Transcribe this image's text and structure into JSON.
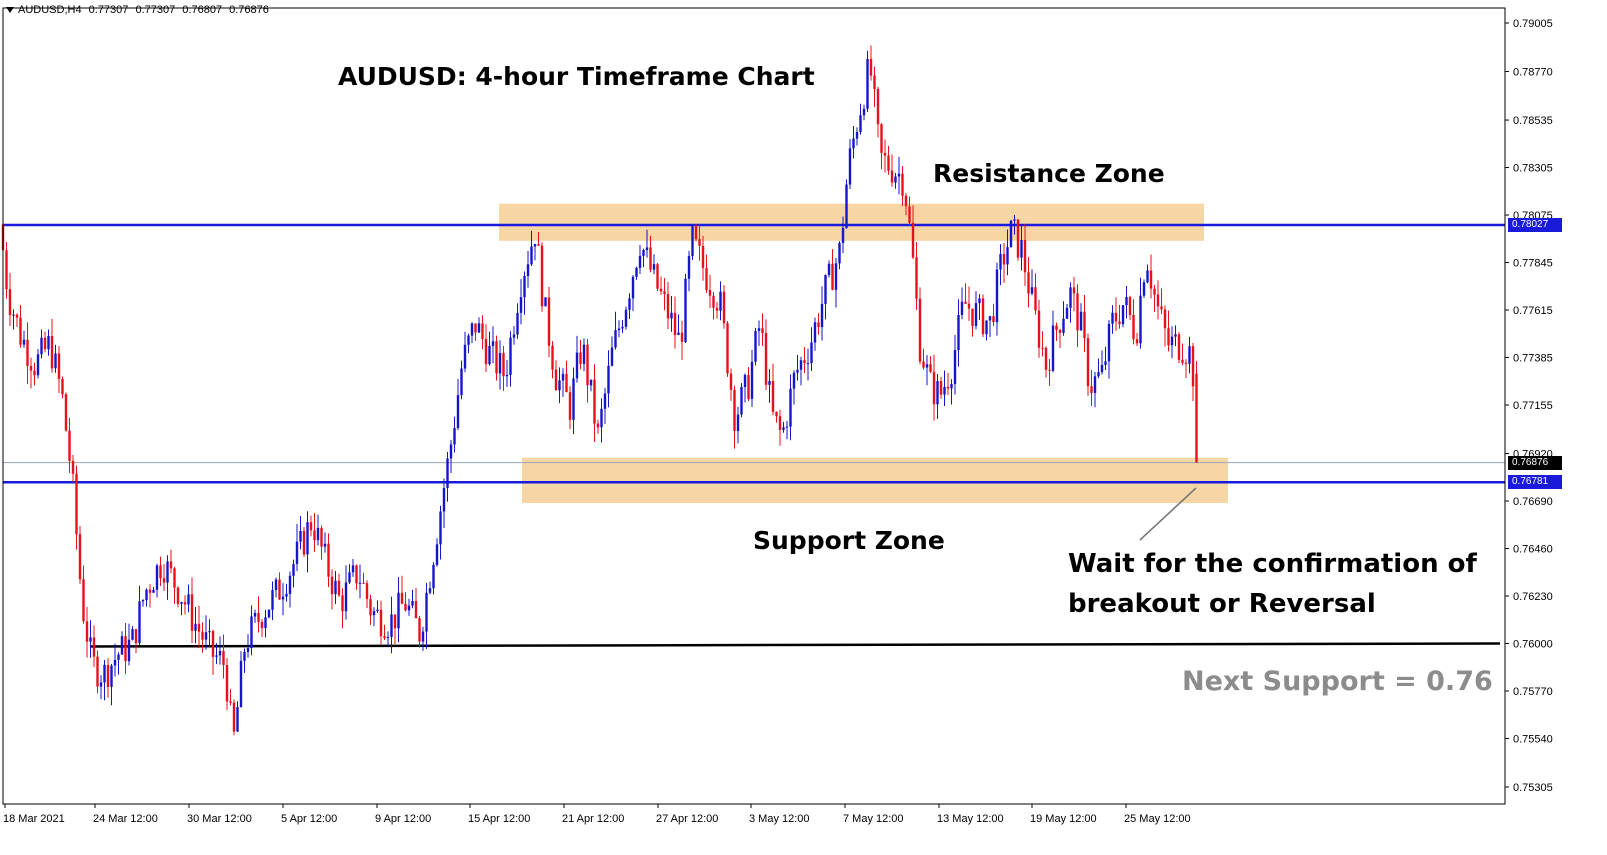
{
  "header": {
    "symbol": "AUDUSD,H4",
    "open": "0.77307",
    "high": "0.77307",
    "low": "0.76807",
    "close": "0.76876"
  },
  "annotations": {
    "title": "AUDUSD: 4-hour Timeframe Chart",
    "resistance_zone": "Resistance Zone",
    "support_zone": "Support Zone",
    "wait_line1": "Wait for the confirmation of",
    "wait_line2": "breakout or Reversal",
    "next_support": "Next Support = 0.76"
  },
  "price_labels": {
    "resistance": "0.78027",
    "current": "0.76876",
    "support": "0.76781"
  },
  "colors": {
    "bull": "#1515cc",
    "bear": "#e8101a",
    "level_line": "#1a1adb",
    "zone_fill": "#f7d6a6",
    "next_support_line": "#000000"
  },
  "chart_data": {
    "type": "candlestick",
    "y_axis_ticks": [
      "0.79005",
      "0.78770",
      "0.78535",
      "0.78305",
      "0.78075",
      "0.77845",
      "0.77615",
      "0.77385",
      "0.77155",
      "0.76920",
      "0.76690",
      "0.76460",
      "0.76230",
      "0.76000",
      "0.75770",
      "0.75540",
      "0.75305"
    ],
    "x_axis_ticks": [
      "18 Mar 2021",
      "24 Mar 12:00",
      "30 Mar 12:00",
      "5 Apr 12:00",
      "9 Apr 12:00",
      "15 Apr 12:00",
      "21 Apr 12:00",
      "27 Apr 12:00",
      "3 May 12:00",
      "7 May 12:00",
      "13 May 12:00",
      "19 May 12:00",
      "25 May 12:00"
    ],
    "ylim": [
      0.7525,
      0.791
    ],
    "horizontal_levels": {
      "resistance": 0.78027,
      "current": 0.76876,
      "support": 0.76781,
      "next_support": 0.76
    },
    "zones": {
      "resistance_zone": [
        0.7795,
        0.7813
      ],
      "support_zone": [
        0.7668,
        0.769
      ]
    },
    "close_path": [
      [
        0,
        0.7803
      ],
      [
        8,
        0.777
      ],
      [
        20,
        0.775
      ],
      [
        35,
        0.7735
      ],
      [
        50,
        0.7745
      ],
      [
        62,
        0.772
      ],
      [
        72,
        0.768
      ],
      [
        82,
        0.762
      ],
      [
        92,
        0.759
      ],
      [
        104,
        0.7585
      ],
      [
        118,
        0.7595
      ],
      [
        132,
        0.76
      ],
      [
        145,
        0.7625
      ],
      [
        162,
        0.764
      ],
      [
        180,
        0.7625
      ],
      [
        195,
        0.761
      ],
      [
        212,
        0.7595
      ],
      [
        225,
        0.759
      ],
      [
        233,
        0.755
      ],
      [
        245,
        0.76
      ],
      [
        262,
        0.7615
      ],
      [
        278,
        0.7625
      ],
      [
        295,
        0.764
      ],
      [
        312,
        0.766
      ],
      [
        325,
        0.764
      ],
      [
        340,
        0.762
      ],
      [
        358,
        0.7635
      ],
      [
        372,
        0.7615
      ],
      [
        390,
        0.761
      ],
      [
        405,
        0.762
      ],
      [
        420,
        0.7605
      ],
      [
        432,
        0.764
      ],
      [
        442,
        0.767
      ],
      [
        452,
        0.77
      ],
      [
        462,
        0.7735
      ],
      [
        475,
        0.7755
      ],
      [
        490,
        0.774
      ],
      [
        505,
        0.773
      ],
      [
        520,
        0.7775
      ],
      [
        535,
        0.78
      ],
      [
        545,
        0.776
      ],
      [
        556,
        0.773
      ],
      [
        570,
        0.7715
      ],
      [
        582,
        0.7745
      ],
      [
        598,
        0.77
      ],
      [
        612,
        0.774
      ],
      [
        628,
        0.777
      ],
      [
        640,
        0.7795
      ],
      [
        655,
        0.7775
      ],
      [
        668,
        0.776
      ],
      [
        680,
        0.7745
      ],
      [
        692,
        0.7795
      ],
      [
        705,
        0.778
      ],
      [
        720,
        0.7765
      ],
      [
        735,
        0.771
      ],
      [
        748,
        0.7725
      ],
      [
        760,
        0.7755
      ],
      [
        772,
        0.771
      ],
      [
        782,
        0.77
      ],
      [
        795,
        0.773
      ],
      [
        810,
        0.7745
      ],
      [
        825,
        0.777
      ],
      [
        840,
        0.779
      ],
      [
        848,
        0.783
      ],
      [
        858,
        0.7855
      ],
      [
        870,
        0.788
      ],
      [
        880,
        0.7835
      ],
      [
        893,
        0.783
      ],
      [
        904,
        0.7825
      ],
      [
        912,
        0.779
      ],
      [
        920,
        0.7745
      ],
      [
        930,
        0.7725
      ],
      [
        940,
        0.772
      ],
      [
        952,
        0.7735
      ],
      [
        964,
        0.7765
      ],
      [
        976,
        0.776
      ],
      [
        990,
        0.7755
      ],
      [
        1002,
        0.7785
      ],
      [
        1012,
        0.78
      ],
      [
        1022,
        0.779
      ],
      [
        1034,
        0.776
      ],
      [
        1046,
        0.7735
      ],
      [
        1058,
        0.7755
      ],
      [
        1070,
        0.777
      ],
      [
        1080,
        0.7755
      ],
      [
        1090,
        0.7725
      ],
      [
        1102,
        0.773
      ],
      [
        1112,
        0.7755
      ],
      [
        1124,
        0.7765
      ],
      [
        1136,
        0.775
      ],
      [
        1146,
        0.779
      ],
      [
        1156,
        0.7765
      ],
      [
        1168,
        0.7745
      ],
      [
        1180,
        0.7745
      ],
      [
        1192,
        0.774
      ],
      [
        1198,
        0.7687
      ]
    ]
  }
}
